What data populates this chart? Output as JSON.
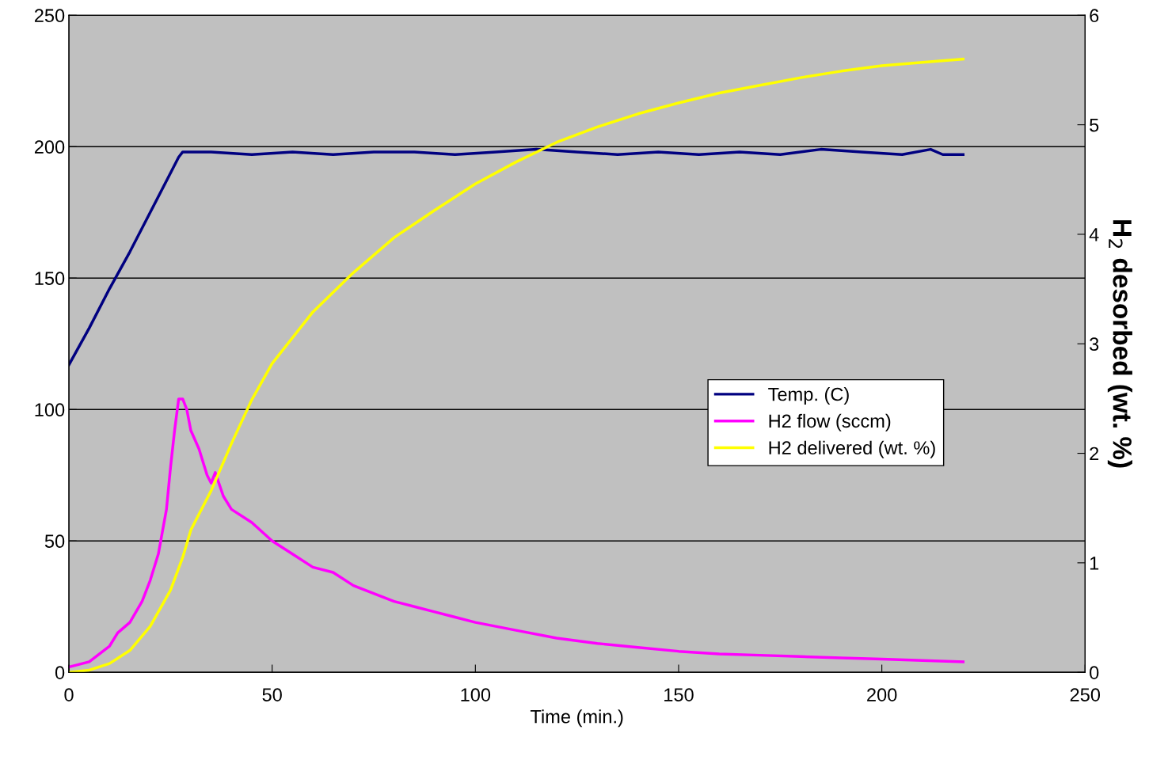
{
  "chart_data": {
    "type": "line",
    "xlabel": "Time (min.)",
    "y2label": "H$_{2}$ desorbed (wt. %)",
    "xlim": [
      0,
      250
    ],
    "xticks": [
      0,
      50,
      100,
      150,
      200,
      250
    ],
    "ylim": [
      0,
      250
    ],
    "yticks": [
      0,
      50,
      100,
      150,
      200,
      250
    ],
    "y2lim": [
      0,
      6
    ],
    "y2ticks": [
      0,
      1,
      2,
      3,
      4,
      5,
      6
    ],
    "grid": "y",
    "legend": "right",
    "marker": "none",
    "line_style": "solid",
    "series": [
      {
        "name": "Temp. (C)",
        "color": "#000080",
        "x": [
          0,
          5,
          10,
          15,
          20,
          25,
          27,
          28,
          35,
          45,
          55,
          65,
          75,
          85,
          95,
          105,
          115,
          125,
          135,
          145,
          155,
          165,
          175,
          185,
          195,
          205,
          212,
          215,
          220
        ],
        "values": [
          117,
          131,
          146,
          160,
          175,
          190,
          196,
          198,
          198,
          197,
          198,
          197,
          198,
          198,
          197,
          198,
          199,
          198,
          197,
          198,
          197,
          198,
          197,
          199,
          198,
          197,
          199,
          197,
          197
        ]
      },
      {
        "name": "H2 flow (sccm)",
        "color": "#ff00ff",
        "x": [
          0,
          5,
          10,
          12,
          15,
          18,
          20,
          22,
          24,
          25,
          26,
          27,
          28,
          29,
          30,
          32,
          34,
          35,
          36,
          38,
          40,
          45,
          50,
          55,
          60,
          65,
          70,
          75,
          80,
          85,
          90,
          95,
          100,
          110,
          120,
          130,
          140,
          150,
          160,
          170,
          180,
          190,
          200,
          210,
          220
        ],
        "values": [
          2,
          4,
          10,
          15,
          19,
          27,
          35,
          45,
          62,
          78,
          92,
          104,
          104,
          100,
          92,
          85,
          75,
          72,
          76,
          67,
          62,
          57,
          50,
          45,
          40,
          38,
          33,
          30,
          27,
          25,
          23,
          21,
          19,
          16,
          13,
          11,
          9.5,
          8,
          7,
          6.5,
          6,
          5.5,
          5,
          4.5,
          4
        ]
      },
      {
        "name": "H2 delivered (wt. %)",
        "color": "#ffff00",
        "axis": "y2",
        "x": [
          0,
          5,
          10,
          15,
          20,
          25,
          28,
          30,
          35,
          40,
          45,
          50,
          60,
          70,
          80,
          90,
          100,
          110,
          120,
          130,
          140,
          150,
          160,
          170,
          180,
          190,
          200,
          210,
          220
        ],
        "values": [
          0,
          0.02,
          0.08,
          0.2,
          0.42,
          0.75,
          1.05,
          1.3,
          1.66,
          2.09,
          2.49,
          2.82,
          3.29,
          3.65,
          3.97,
          4.22,
          4.46,
          4.66,
          4.84,
          4.98,
          5.1,
          5.2,
          5.29,
          5.36,
          5.43,
          5.49,
          5.54,
          5.57,
          5.6
        ]
      }
    ]
  }
}
